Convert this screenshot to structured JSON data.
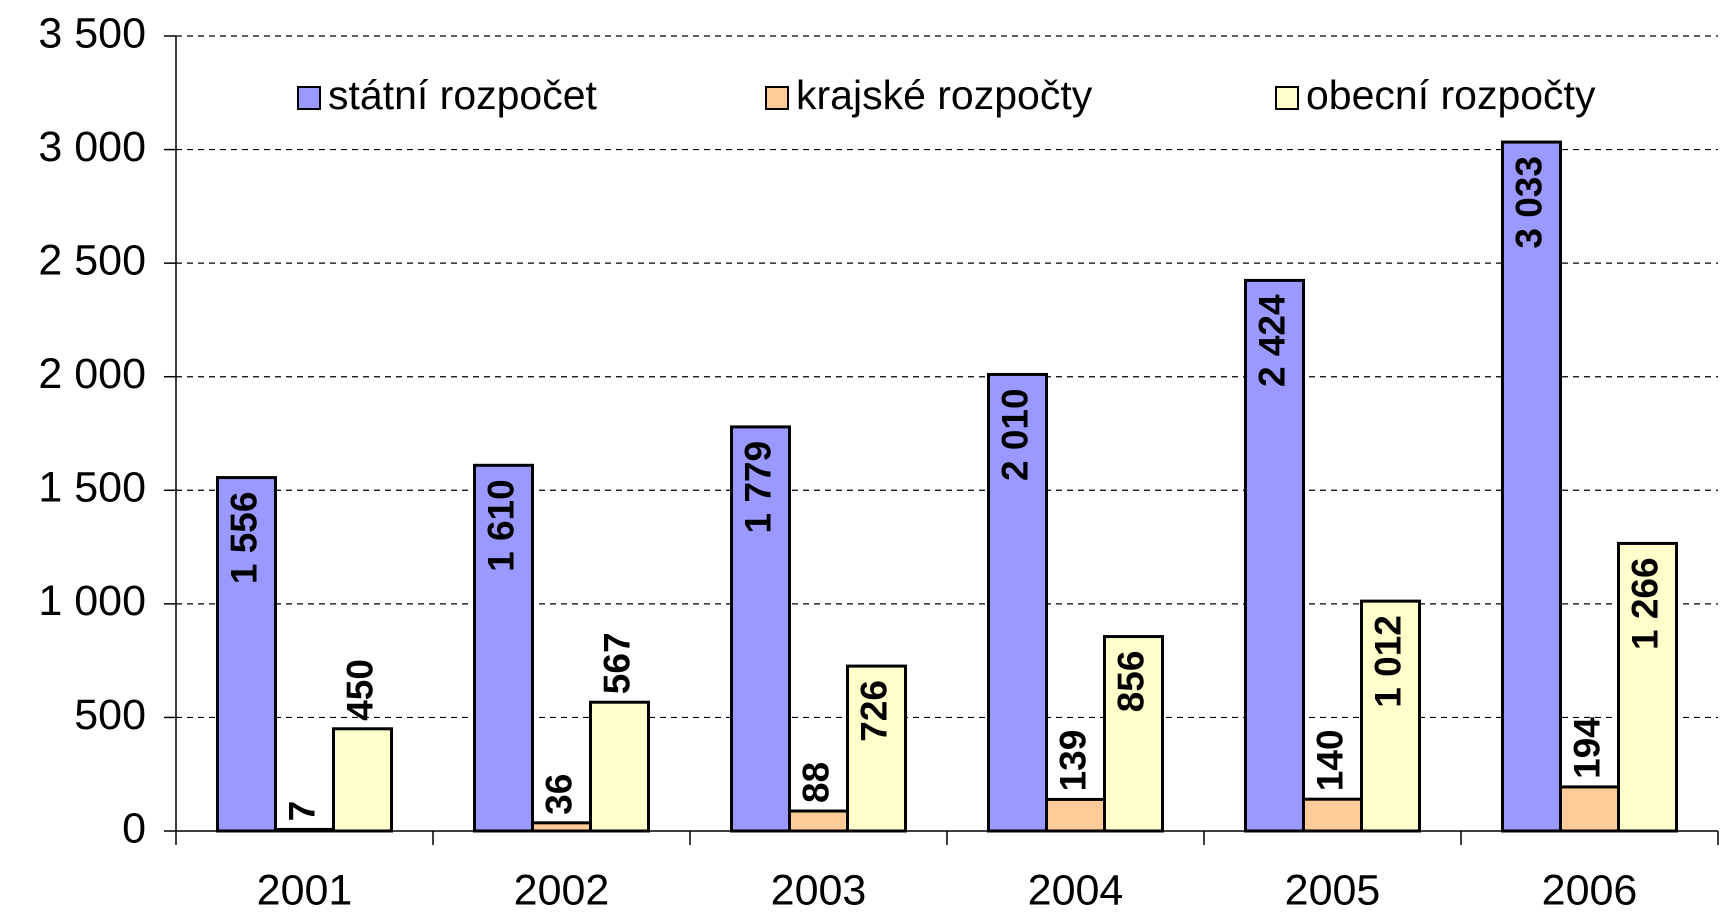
{
  "chart_data": {
    "type": "bar",
    "categories": [
      "2001",
      "2002",
      "2003",
      "2004",
      "2005",
      "2006"
    ],
    "series": [
      {
        "name": "státní rozpočet",
        "color": "#9999ff",
        "values": [
          1556,
          1610,
          1779,
          2010,
          2424,
          3033
        ],
        "value_labels": [
          "1 556",
          "1 610",
          "1 779",
          "2 010",
          "2 424",
          "3 033"
        ]
      },
      {
        "name": "krajské rozpočty",
        "color": "#ffcc99",
        "values": [
          7,
          36,
          88,
          139,
          140,
          194
        ],
        "value_labels": [
          "7",
          "36",
          "88",
          "139",
          "140",
          "194"
        ]
      },
      {
        "name": "obecní rozpočty",
        "color": "#ffffcc",
        "values": [
          450,
          567,
          726,
          856,
          1012,
          1266
        ],
        "value_labels": [
          "450",
          "567",
          "726",
          "856",
          "1 012",
          "1 266"
        ]
      }
    ],
    "ylim": [
      0,
      3500
    ],
    "yticks": [
      0,
      500,
      {
        "value": 1000,
        "label": "1 000"
      },
      {
        "value": 1500,
        "label": "1 500"
      },
      {
        "value": 2000,
        "label": "2 000"
      },
      {
        "value": 2500,
        "label": "2 500"
      },
      {
        "value": 3000,
        "label": "3 000"
      },
      {
        "value": 3500,
        "label": "3 500"
      }
    ],
    "grid": true,
    "legend": "top"
  }
}
